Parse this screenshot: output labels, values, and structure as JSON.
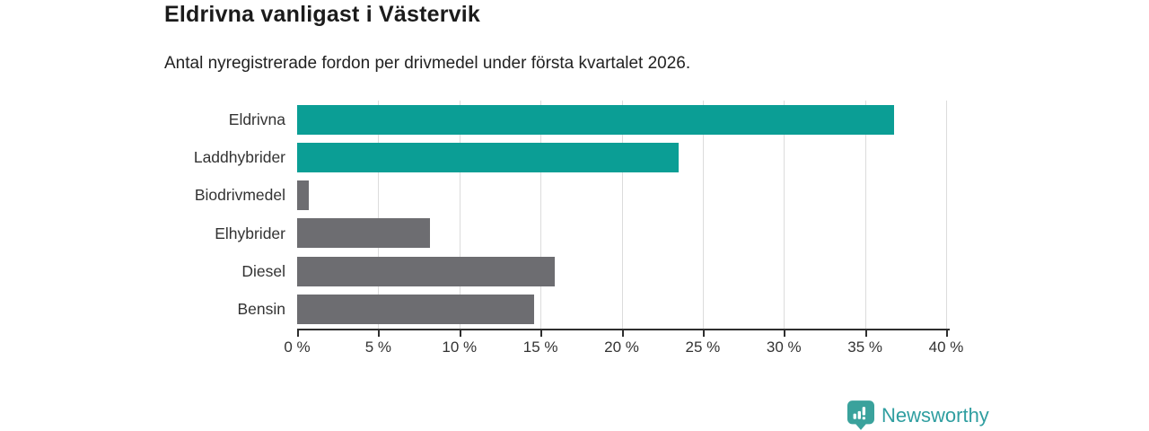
{
  "header": {
    "title": "Eldrivna vanligast i Västervik",
    "subtitle": "Antal nyregistrerade fordon per drivmedel under första kvartalet 2026."
  },
  "branding": {
    "logo_text": "Newsworthy",
    "logo_color": "#2f9ea0",
    "icon_name": "newsworthy-bars-bubble-icon",
    "icon_color": "#3aa29c"
  },
  "colors": {
    "accent_teal": "#0b9e95",
    "neutral_gray": "#6d6d71",
    "gridline": "#dcdcdc",
    "axis": "#2e2e2e",
    "text_dark": "#1b1b1b",
    "text_medium": "#333333"
  },
  "chart_data": {
    "type": "bar",
    "orientation": "horizontal",
    "title": "Eldrivna vanligast i Västervik",
    "subtitle": "Antal nyregistrerade fordon per drivmedel under första kvartalet 2026.",
    "xlabel": "",
    "ylabel": "",
    "categories": [
      "Eldrivna",
      "Laddhybrider",
      "Biodrivmedel",
      "Elhybrider",
      "Diesel",
      "Bensin"
    ],
    "values": [
      36.8,
      23.5,
      0.7,
      8.2,
      15.9,
      14.6
    ],
    "unit": "%",
    "bar_colors": [
      "#0b9e95",
      "#0b9e95",
      "#6d6d71",
      "#6d6d71",
      "#6d6d71",
      "#6d6d71"
    ],
    "xlim": [
      0,
      40
    ],
    "x_ticks": [
      0,
      5,
      10,
      15,
      20,
      25,
      30,
      35,
      40
    ],
    "x_tick_labels": [
      "0 %",
      "5 %",
      "10 %",
      "15 %",
      "20 %",
      "25 %",
      "30 %",
      "35 %",
      "40 %"
    ],
    "grid": true,
    "legend": false
  }
}
